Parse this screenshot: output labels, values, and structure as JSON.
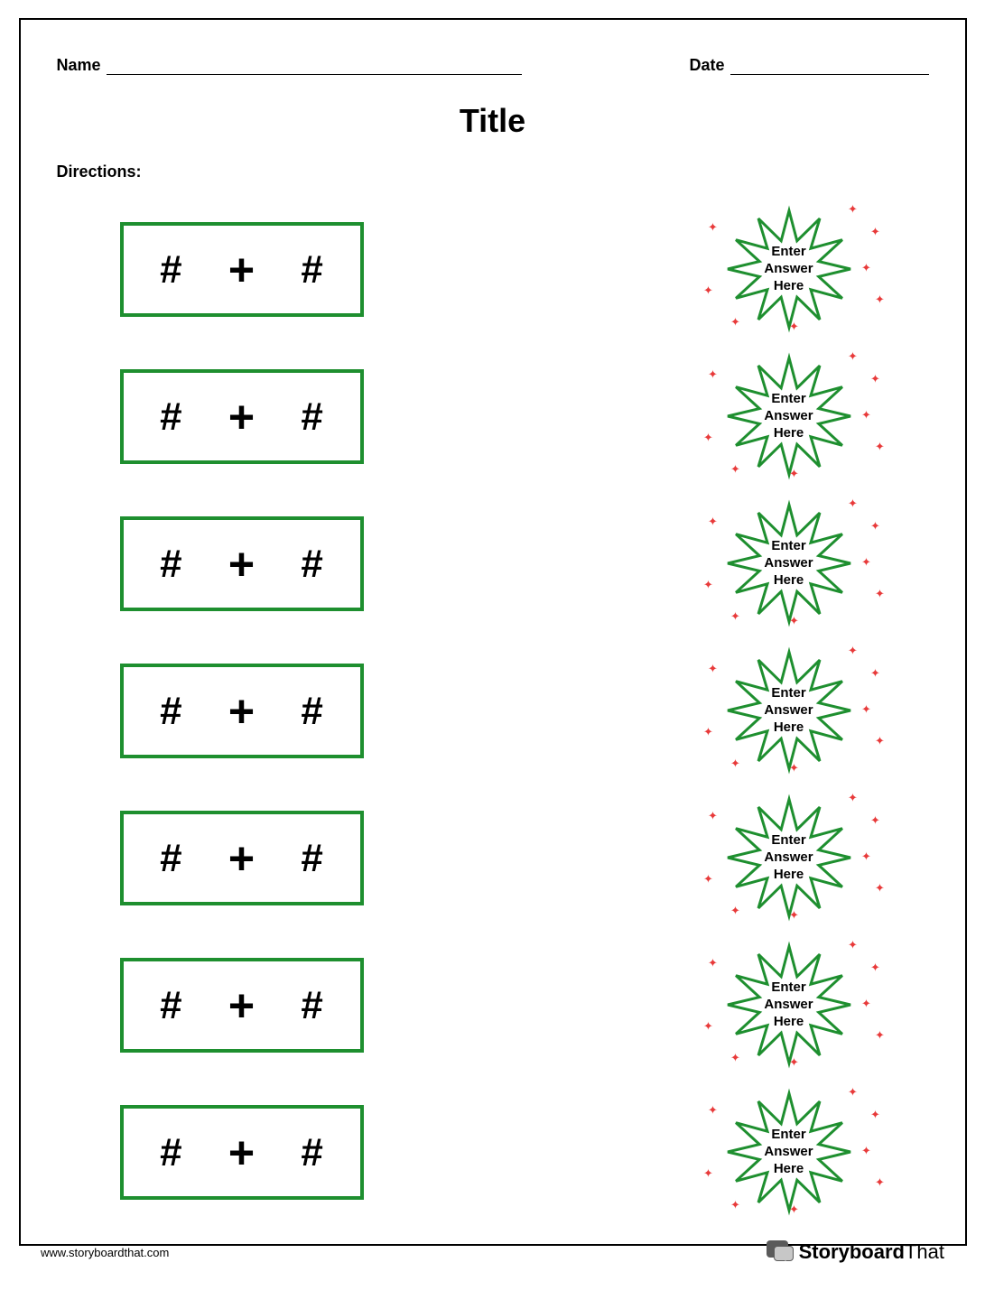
{
  "header": {
    "name_label": "Name",
    "date_label": "Date"
  },
  "title": "Title",
  "directions_label": "Directions:",
  "colors": {
    "box_border": "#1e8f2f",
    "burst_stroke": "#1e8f2f",
    "burst_fill": "#ffffff",
    "star_accent": "#e83a3a",
    "text": "#000000",
    "page_border": "#000000"
  },
  "problem_template": {
    "operand_placeholder": "#",
    "operator_symbol": "+",
    "answer_placeholder_line1": "Enter",
    "answer_placeholder_line2": "Answer",
    "answer_placeholder_line3": "Here"
  },
  "row_count": 7,
  "footer": {
    "url": "www.storyboardthat.com",
    "brand_bold": "Storyboard",
    "brand_light": "That"
  }
}
